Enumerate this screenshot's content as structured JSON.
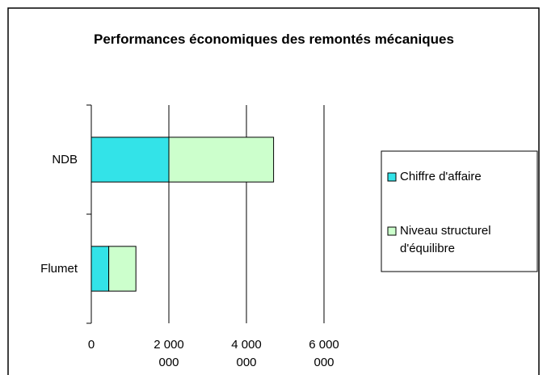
{
  "chart_data": {
    "type": "bar",
    "orientation": "horizontal",
    "stacked": true,
    "title": "Performances économiques des remontés mécaniques",
    "categories": [
      "NDB",
      "Flumet"
    ],
    "series": [
      {
        "name": "Chiffre d'affaire",
        "color": "#33e3e8",
        "values": [
          2000000,
          450000
        ]
      },
      {
        "name": "Niveau structurel d'équilibre",
        "color": "#ccffcc",
        "values": [
          2700000,
          700000
        ]
      }
    ],
    "xlim": [
      0,
      6000000
    ],
    "xticks": [
      0,
      {
        "value": 2000000,
        "label": "2 000 000"
      },
      {
        "value": 4000000,
        "label": "4 000 000"
      },
      {
        "value": 6000000,
        "label": "6 000 000"
      }
    ],
    "grid": true,
    "legend": "right"
  }
}
